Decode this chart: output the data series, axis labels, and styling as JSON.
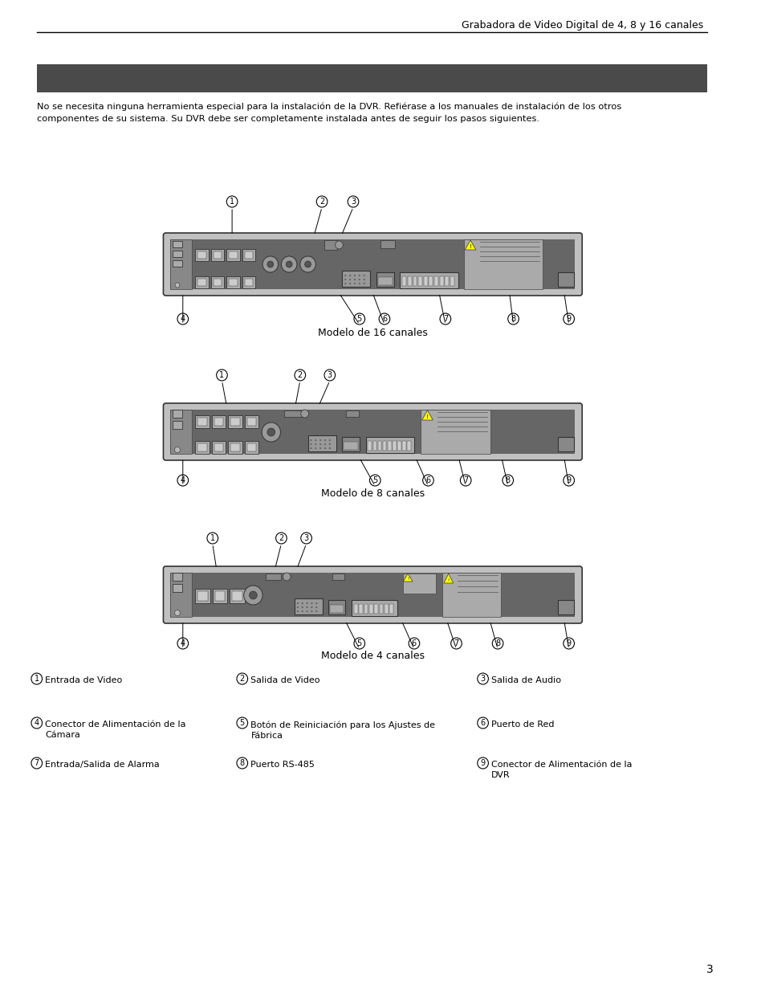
{
  "page_title": "Grabadora de Video Digital de 4, 8 y 16 canales",
  "header_bar_color": "#4a4a4a",
  "bg_color": "#ffffff",
  "intro_text_1": "No se necesita ninguna herramienta especial para la instalación de la DVR. Refiérase a los manuales de instalación de los otros",
  "intro_text_2": "componentes de su sistema. Su DVR debe ser completamente instalada antes de seguir los pasos siguientes.",
  "model_labels": [
    "Modelo de 16 canales",
    "Modelo de 8 canales",
    "Modelo de 4 canales"
  ],
  "legend_items": [
    {
      "num": "1",
      "text": "Entrada de Video"
    },
    {
      "num": "2",
      "text": "Salida de Video"
    },
    {
      "num": "3",
      "text": "Salida de Audio"
    },
    {
      "num": "4",
      "text": "Conector de Alimentación de la\nCámara"
    },
    {
      "num": "5",
      "text": "Botón de Reiniciación para los Ajustes de\nFábrica"
    },
    {
      "num": "6",
      "text": "Puerto de Red"
    },
    {
      "num": "7",
      "text": "Entrada/Salida de Alarma"
    },
    {
      "num": "8",
      "text": "Puerto RS-485"
    },
    {
      "num": "9",
      "text": "Conector de Alimentación de la\nDVR"
    }
  ],
  "page_number": "3",
  "header_text": ""
}
